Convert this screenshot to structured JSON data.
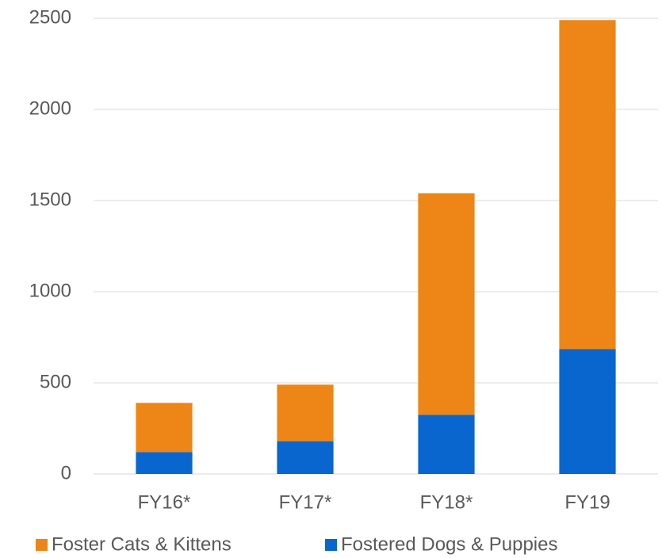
{
  "chart_data": {
    "type": "stacked_bar",
    "categories": [
      "FY16*",
      "FY17*",
      "FY18*",
      "FY19"
    ],
    "series": [
      {
        "name": "Foster Cats & Kittens",
        "color": "#ed8616",
        "values": [
          270,
          310,
          1215,
          1805
        ]
      },
      {
        "name": "Fostered Dogs & Puppies",
        "color": "#0a66cf",
        "values": [
          120,
          180,
          325,
          685
        ]
      }
    ],
    "ylim": [
      0,
      2500
    ],
    "yticks": [
      0,
      500,
      1000,
      1500,
      2000,
      2500
    ],
    "grid": true,
    "legend": "bottom"
  }
}
